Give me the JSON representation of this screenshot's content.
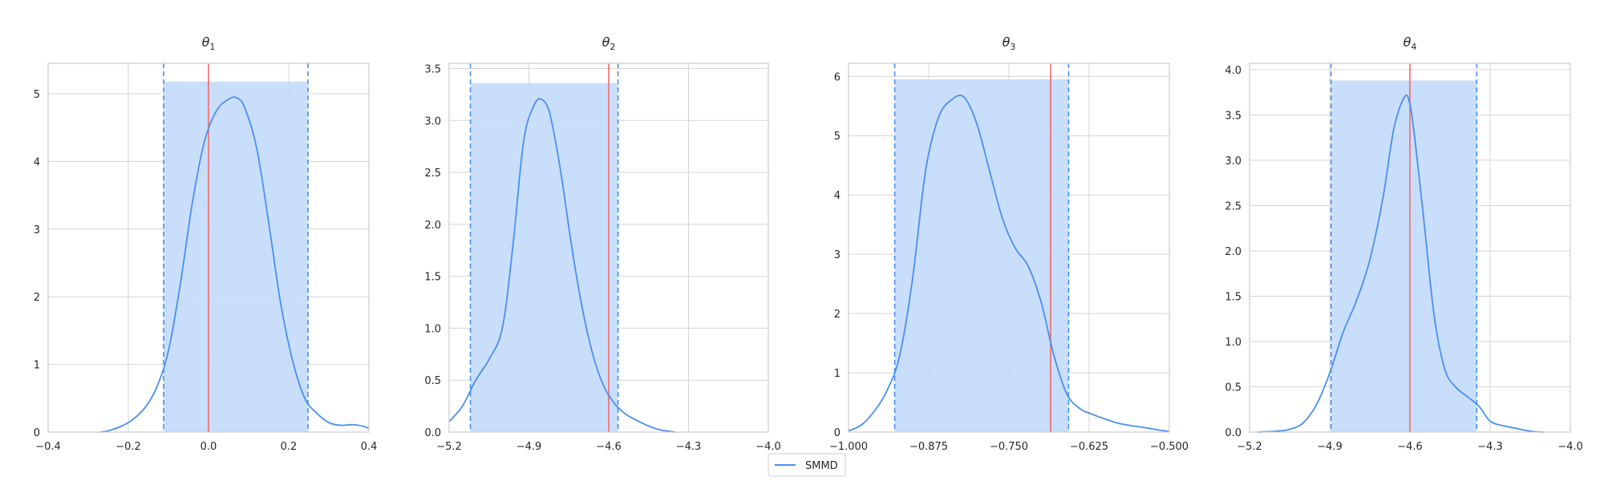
{
  "chart_data": [
    {
      "type": "area",
      "title": "θ1",
      "title_base": "θ",
      "title_sub": "1",
      "xlim": [
        -0.4,
        0.4
      ],
      "ylim": [
        0,
        5.45
      ],
      "xticks": [
        -0.4,
        -0.2,
        0.0,
        0.2,
        0.4
      ],
      "xtick_labels": [
        "−0.4",
        "−0.2",
        "0.0",
        "0.2",
        "0.4"
      ],
      "yticks": [
        0,
        1,
        2,
        3,
        4,
        5
      ],
      "ytick_labels": [
        "0",
        "1",
        "2",
        "3",
        "4",
        "5"
      ],
      "interval": [
        -0.112,
        0.248
      ],
      "interval_height": 5.18,
      "true_value": 0.0,
      "grid": true,
      "series": [
        {
          "name": "SMMD",
          "x": [
            -0.27,
            -0.25,
            -0.22,
            -0.19,
            -0.16,
            -0.13,
            -0.1,
            -0.07,
            -0.04,
            -0.01,
            0.02,
            0.05,
            0.07,
            0.09,
            0.12,
            0.15,
            0.18,
            0.21,
            0.24,
            0.27,
            0.3,
            0.33,
            0.36,
            0.39,
            0.4
          ],
          "y": [
            0.0,
            0.02,
            0.08,
            0.18,
            0.35,
            0.65,
            1.2,
            2.2,
            3.4,
            4.3,
            4.75,
            4.92,
            4.94,
            4.8,
            4.2,
            3.1,
            1.9,
            1.05,
            0.5,
            0.28,
            0.14,
            0.1,
            0.11,
            0.08,
            0.05
          ]
        }
      ]
    },
    {
      "type": "area",
      "title": "θ2",
      "title_base": "θ",
      "title_sub": "2",
      "xlim": [
        -5.2,
        -4.0
      ],
      "ylim": [
        0,
        3.55
      ],
      "xticks": [
        -5.2,
        -4.9,
        -4.6,
        -4.3,
        -4.0
      ],
      "xtick_labels": [
        "−5.2",
        "−4.9",
        "−4.6",
        "−4.3",
        "−4.0"
      ],
      "yticks": [
        0,
        0.5,
        1.0,
        1.5,
        2.0,
        2.5,
        3.0,
        3.5
      ],
      "ytick_labels": [
        "0.0",
        "0.5",
        "1.0",
        "1.5",
        "2.0",
        "2.5",
        "3.0",
        "3.5"
      ],
      "interval": [
        -5.12,
        -4.565
      ],
      "interval_height": 3.36,
      "true_value": -4.6,
      "grid": true,
      "series": [
        {
          "name": "SMMD",
          "x": [
            -5.2,
            -5.15,
            -5.1,
            -5.05,
            -5.0,
            -4.96,
            -4.92,
            -4.88,
            -4.85,
            -4.82,
            -4.78,
            -4.74,
            -4.7,
            -4.66,
            -4.62,
            -4.58,
            -4.54,
            -4.5,
            -4.46,
            -4.42,
            -4.38,
            -4.35
          ],
          "y": [
            0.1,
            0.25,
            0.5,
            0.7,
            1.0,
            1.8,
            2.8,
            3.15,
            3.2,
            3.05,
            2.5,
            1.8,
            1.2,
            0.75,
            0.45,
            0.28,
            0.18,
            0.12,
            0.07,
            0.03,
            0.01,
            0.0
          ]
        }
      ]
    },
    {
      "type": "area",
      "title": "θ3",
      "title_base": "θ",
      "title_sub": "3",
      "xlim": [
        -1.0,
        -0.5
      ],
      "ylim": [
        0,
        6.22
      ],
      "xticks": [
        -1.0,
        -0.875,
        -0.75,
        -0.625,
        -0.5
      ],
      "xtick_labels": [
        "−1.000",
        "−0.875",
        "−0.750",
        "−0.625",
        "−0.500"
      ],
      "yticks": [
        0,
        1,
        2,
        3,
        4,
        5,
        6
      ],
      "ytick_labels": [
        "0",
        "1",
        "2",
        "3",
        "4",
        "5",
        "6"
      ],
      "interval": [
        -0.928,
        -0.657
      ],
      "interval_height": 5.95,
      "true_value": -0.685,
      "grid": true,
      "series": [
        {
          "name": "SMMD",
          "x": [
            -1.0,
            -0.98,
            -0.96,
            -0.94,
            -0.92,
            -0.9,
            -0.88,
            -0.86,
            -0.84,
            -0.82,
            -0.8,
            -0.78,
            -0.76,
            -0.74,
            -0.72,
            -0.7,
            -0.68,
            -0.66,
            -0.64,
            -0.62,
            -0.6,
            -0.58,
            -0.56,
            -0.54,
            -0.52,
            -0.5
          ],
          "y": [
            0.02,
            0.12,
            0.35,
            0.7,
            1.3,
            2.6,
            4.4,
            5.3,
            5.6,
            5.65,
            5.2,
            4.4,
            3.6,
            3.1,
            2.8,
            2.2,
            1.3,
            0.65,
            0.4,
            0.3,
            0.22,
            0.15,
            0.11,
            0.08,
            0.04,
            0.01
          ]
        }
      ]
    },
    {
      "type": "area",
      "title": "θ4",
      "title_base": "θ",
      "title_sub": "4",
      "xlim": [
        -5.2,
        -4.0
      ],
      "ylim": [
        0,
        4.07
      ],
      "xticks": [
        -5.2,
        -4.9,
        -4.6,
        -4.3,
        -4.0
      ],
      "xtick_labels": [
        "−5.2",
        "−4.9",
        "−4.6",
        "−4.3",
        "−4.0"
      ],
      "yticks": [
        0,
        0.5,
        1.0,
        1.5,
        2.0,
        2.5,
        3.0,
        3.5,
        4.0
      ],
      "ytick_labels": [
        "0.0",
        "0.5",
        "1.0",
        "1.5",
        "2.0",
        "2.5",
        "3.0",
        "3.5",
        "4.0"
      ],
      "interval": [
        -4.895,
        -4.35
      ],
      "interval_height": 3.88,
      "true_value": -4.6,
      "grid": true,
      "series": [
        {
          "name": "SMMD",
          "x": [
            -5.17,
            -5.1,
            -5.05,
            -5.0,
            -4.95,
            -4.9,
            -4.85,
            -4.8,
            -4.75,
            -4.7,
            -4.66,
            -4.62,
            -4.6,
            -4.58,
            -4.55,
            -4.51,
            -4.47,
            -4.43,
            -4.38,
            -4.34,
            -4.3,
            -4.25,
            -4.2,
            -4.15,
            -4.1
          ],
          "y": [
            0.0,
            0.01,
            0.03,
            0.1,
            0.3,
            0.65,
            1.1,
            1.45,
            1.9,
            2.6,
            3.35,
            3.7,
            3.62,
            3.2,
            2.4,
            1.3,
            0.7,
            0.5,
            0.38,
            0.28,
            0.12,
            0.07,
            0.04,
            0.01,
            0.0
          ]
        }
      ]
    }
  ],
  "legend": {
    "entries": [
      "SMMD"
    ]
  },
  "colors": {
    "curve": "#4a8ff0",
    "fill": "#c6dcfa",
    "true_line": "#f06a6a",
    "grid": "#d4d4d4",
    "frame": "#cccccc"
  }
}
